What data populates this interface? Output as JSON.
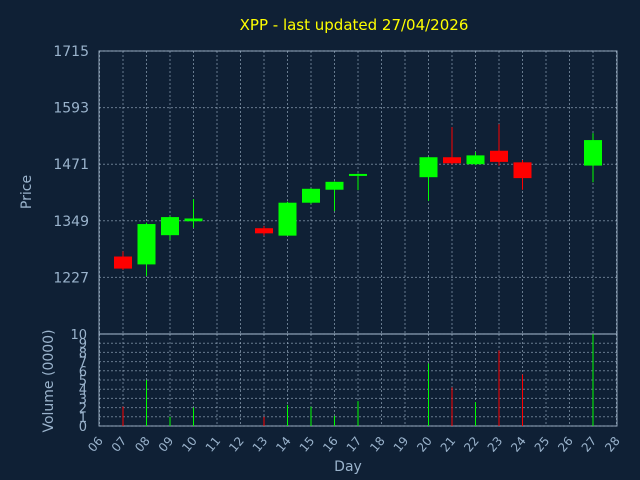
{
  "chart_data": {
    "type": "candlestick",
    "title": "XPP - last updated 27/04/2026",
    "ylabel": "Price",
    "volume_label": "Volume (0000)",
    "xlabel": "Day",
    "price_ylim": [
      1105,
      1715
    ],
    "price_yticks": [
      "1715",
      "1593",
      "1471",
      "1349",
      "1227"
    ],
    "volume_ylim": [
      0,
      10
    ],
    "volume_yticks": [
      "10",
      "9",
      "8",
      "7",
      "6",
      "5",
      "4",
      "3",
      "2",
      "1",
      "0"
    ],
    "x_ticks": [
      "06",
      "07",
      "08",
      "09",
      "10",
      "11",
      "12",
      "13",
      "14",
      "15",
      "16",
      "17",
      "18",
      "19",
      "20",
      "21",
      "22",
      "23",
      "24",
      "25",
      "26",
      "27",
      "28"
    ],
    "up_color": "#00ff00",
    "down_color": "#ff0000",
    "candles": [
      {
        "day": "07",
        "open": 1272,
        "close": 1246,
        "high": 1283,
        "low": 1243,
        "volume": 2.1
      },
      {
        "day": "08",
        "open": 1255,
        "close": 1342,
        "high": 1345,
        "low": 1230,
        "volume": 5.0
      },
      {
        "day": "09",
        "open": 1318,
        "close": 1357,
        "high": 1360,
        "low": 1308,
        "volume": 1.0
      },
      {
        "day": "10",
        "open": 1348,
        "close": 1354,
        "high": 1396,
        "low": 1334,
        "volume": 2.0
      },
      {
        "day": "13",
        "open": 1333,
        "close": 1322,
        "high": 1338,
        "low": 1317,
        "volume": 1.0
      },
      {
        "day": "14",
        "open": 1317,
        "close": 1388,
        "high": 1390,
        "low": 1317,
        "volume": 2.3
      },
      {
        "day": "15",
        "open": 1388,
        "close": 1418,
        "high": 1419,
        "low": 1385,
        "volume": 2.1
      },
      {
        "day": "16",
        "open": 1416,
        "close": 1433,
        "high": 1434,
        "low": 1370,
        "volume": 1.1
      },
      {
        "day": "17",
        "open": 1447,
        "close": 1450,
        "high": 1451,
        "low": 1415,
        "volume": 2.7
      },
      {
        "day": "20",
        "open": 1443,
        "close": 1486,
        "high": 1487,
        "low": 1392,
        "volume": 6.8
      },
      {
        "day": "21",
        "open": 1486,
        "close": 1473,
        "high": 1551,
        "low": 1470,
        "volume": 4.2
      },
      {
        "day": "22",
        "open": 1471,
        "close": 1490,
        "high": 1497,
        "low": 1469,
        "volume": 2.6
      },
      {
        "day": "23",
        "open": 1500,
        "close": 1476,
        "high": 1557,
        "low": 1468,
        "volume": 8.2
      },
      {
        "day": "24",
        "open": 1475,
        "close": 1441,
        "high": 1480,
        "low": 1416,
        "volume": 5.6
      },
      {
        "day": "27",
        "open": 1468,
        "close": 1523,
        "high": 1538,
        "low": 1432,
        "volume": 10.0
      }
    ]
  }
}
